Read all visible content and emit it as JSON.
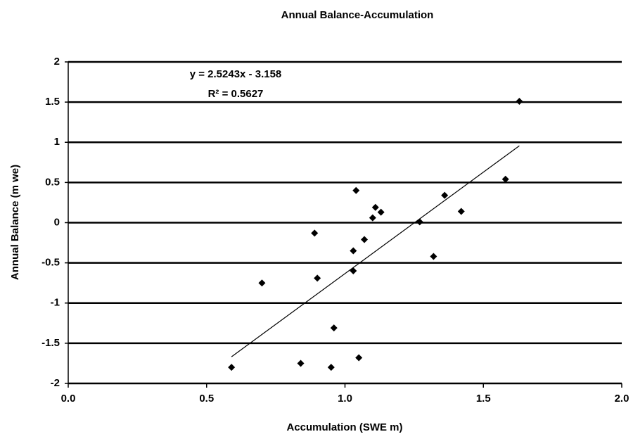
{
  "chart_data": {
    "type": "scatter",
    "title": "Annual Balance-Accumulation",
    "x_label": "Accumulation (SWE m)",
    "y_label": "Annual Balance (m we)",
    "x": [
      0.59,
      0.7,
      0.84,
      0.89,
      0.9,
      0.95,
      0.96,
      1.03,
      1.03,
      1.04,
      1.05,
      1.07,
      1.1,
      1.11,
      1.13,
      1.27,
      1.32,
      1.36,
      1.42,
      1.58,
      1.63
    ],
    "series": [
      {
        "name": "Annual Balance",
        "color": "#000000",
        "values": [
          -1.8,
          -0.75,
          -1.75,
          -0.13,
          -0.69,
          -1.8,
          -1.31,
          -0.6,
          -0.35,
          0.4,
          -1.68,
          -0.21,
          0.06,
          0.19,
          0.13,
          0.01,
          -0.42,
          0.34,
          0.14,
          0.54,
          1.51
        ]
      }
    ],
    "trendline": {
      "slope": 2.5243,
      "intercept": -3.158,
      "equation": "y = 2.5243x - 3.158",
      "r2": "R² = 0.5627"
    },
    "xlim": [
      0,
      2
    ],
    "xticks": [
      {
        "value": 0,
        "label": "0.0"
      },
      0.5,
      {
        "value": 1,
        "label": "1.0"
      },
      1.5,
      {
        "value": 2,
        "label": "2.0"
      }
    ],
    "ylim": [
      -2,
      2
    ],
    "yticks": [
      2,
      1.5,
      1,
      0.5,
      0,
      -0.5,
      -1,
      -1.5,
      -2
    ],
    "grid": true
  }
}
